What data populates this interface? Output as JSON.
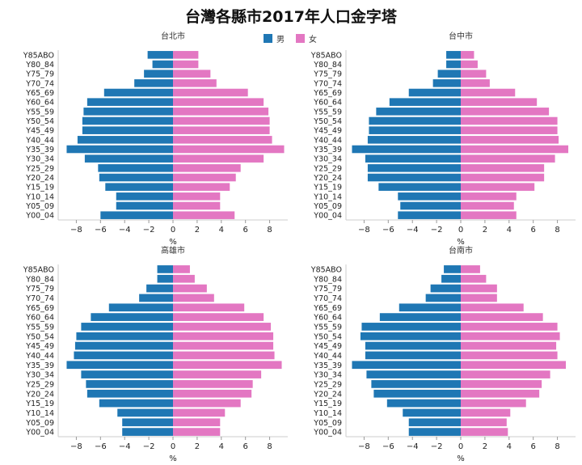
{
  "title": "台灣各縣市2017年人口金字塔",
  "legend": {
    "placement": "top-center",
    "male": "男",
    "female": "女"
  },
  "colors": {
    "male": "#1f77b4",
    "female": "#e377c2"
  },
  "chart_data": [
    {
      "type": "bar",
      "title": "台北市",
      "xlabel": "%",
      "ylabel": "",
      "xlim": [
        -9.5,
        9.5
      ],
      "xticks": [
        -8,
        -6,
        -4,
        -2,
        0,
        2,
        4,
        6,
        8
      ],
      "categories": [
        "Y85ABO",
        "Y80_84",
        "Y75_79",
        "Y70_74",
        "Y65_69",
        "Y60_64",
        "Y55_59",
        "Y50_54",
        "Y45_49",
        "Y40_44",
        "Y35_39",
        "Y30_34",
        "Y25_29",
        "Y20_24",
        "Y15_19",
        "Y10_14",
        "Y05_09",
        "Y00_04"
      ],
      "series": [
        {
          "name": "男",
          "values": [
            -2.1,
            -1.7,
            -2.4,
            -3.2,
            -5.7,
            -7.1,
            -7.4,
            -7.5,
            -7.5,
            -7.9,
            -8.8,
            -7.3,
            -6.2,
            -6.1,
            -5.6,
            -4.7,
            -4.7,
            -6.0
          ]
        },
        {
          "name": "女",
          "values": [
            2.1,
            2.1,
            3.1,
            3.6,
            6.2,
            7.5,
            7.9,
            8.0,
            8.0,
            8.2,
            9.2,
            7.5,
            5.6,
            5.2,
            4.7,
            3.9,
            3.9,
            5.1
          ]
        }
      ]
    },
    {
      "type": "bar",
      "title": "台中市",
      "xlabel": "%",
      "ylabel": "",
      "xlim": [
        -9.5,
        9.5
      ],
      "xticks": [
        -8,
        -6,
        -4,
        -2,
        0,
        2,
        4,
        6,
        8
      ],
      "categories": [
        "Y85ABO",
        "Y80_84",
        "Y75_79",
        "Y70_74",
        "Y65_69",
        "Y60_64",
        "Y55_59",
        "Y50_54",
        "Y45_49",
        "Y40_44",
        "Y35_39",
        "Y30_34",
        "Y25_29",
        "Y20_24",
        "Y15_19",
        "Y10_14",
        "Y05_09",
        "Y00_04"
      ],
      "series": [
        {
          "name": "男",
          "values": [
            -1.2,
            -1.2,
            -1.9,
            -2.3,
            -4.3,
            -5.9,
            -7.0,
            -7.6,
            -7.6,
            -7.7,
            -9.0,
            -7.9,
            -7.7,
            -7.7,
            -6.8,
            -5.2,
            -5.0,
            -5.2
          ]
        },
        {
          "name": "女",
          "values": [
            1.1,
            1.4,
            2.1,
            2.4,
            4.5,
            6.3,
            7.3,
            8.0,
            8.0,
            8.1,
            8.9,
            7.8,
            6.9,
            6.9,
            6.1,
            4.6,
            4.4,
            4.6
          ]
        }
      ]
    },
    {
      "type": "bar",
      "title": "高雄市",
      "xlabel": "%",
      "ylabel": "",
      "xlim": [
        -9.5,
        9.5
      ],
      "xticks": [
        -8,
        -6,
        -4,
        -2,
        0,
        2,
        4,
        6,
        8
      ],
      "categories": [
        "Y85ABO",
        "Y80_84",
        "Y75_79",
        "Y70_74",
        "Y65_69",
        "Y60_64",
        "Y55_59",
        "Y50_54",
        "Y45_49",
        "Y40_44",
        "Y35_39",
        "Y30_34",
        "Y25_29",
        "Y20_24",
        "Y15_19",
        "Y10_14",
        "Y05_09",
        "Y00_04"
      ],
      "series": [
        {
          "name": "男",
          "values": [
            -1.3,
            -1.3,
            -2.2,
            -2.8,
            -5.3,
            -6.8,
            -7.6,
            -8.0,
            -8.1,
            -8.2,
            -8.8,
            -7.6,
            -7.2,
            -7.1,
            -6.1,
            -4.6,
            -4.2,
            -4.2
          ]
        },
        {
          "name": "女",
          "values": [
            1.4,
            1.8,
            2.8,
            3.4,
            5.9,
            7.5,
            8.1,
            8.3,
            8.3,
            8.4,
            9.0,
            7.3,
            6.6,
            6.5,
            5.6,
            4.3,
            3.9,
            3.9
          ]
        }
      ]
    },
    {
      "type": "bar",
      "title": "台南市",
      "xlabel": "%",
      "ylabel": "",
      "xlim": [
        -9.5,
        9.5
      ],
      "xticks": [
        -8,
        -6,
        -4,
        -2,
        0,
        2,
        4,
        6,
        8
      ],
      "categories": [
        "Y85ABO",
        "Y80_84",
        "Y75_79",
        "Y70_74",
        "Y65_69",
        "Y60_64",
        "Y55_59",
        "Y50_54",
        "Y45_49",
        "Y40_44",
        "Y35_39",
        "Y30_34",
        "Y25_29",
        "Y20_24",
        "Y15_19",
        "Y10_14",
        "Y05_09",
        "Y00_04"
      ],
      "series": [
        {
          "name": "男",
          "values": [
            -1.4,
            -1.6,
            -2.5,
            -2.9,
            -5.1,
            -6.7,
            -8.2,
            -8.3,
            -7.9,
            -7.9,
            -9.0,
            -7.8,
            -7.4,
            -7.2,
            -6.1,
            -4.8,
            -4.3,
            -4.3
          ]
        },
        {
          "name": "女",
          "values": [
            1.6,
            2.1,
            3.0,
            3.0,
            5.2,
            6.8,
            8.0,
            8.2,
            7.9,
            8.0,
            8.7,
            7.4,
            6.7,
            6.5,
            5.4,
            4.1,
            3.8,
            3.9
          ]
        }
      ]
    }
  ]
}
